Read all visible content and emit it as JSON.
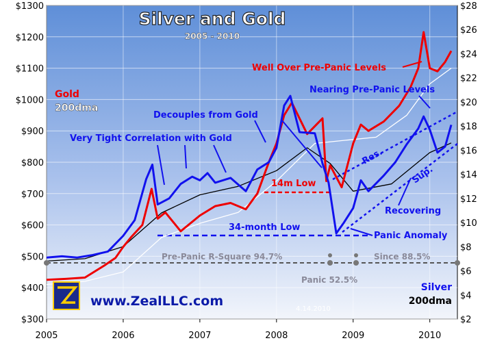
{
  "chart_data": {
    "type": "line",
    "title": "Silver and Gold",
    "subtitle": "2005 - 2010",
    "date_stamp": "4.14.2010",
    "branding": {
      "url": "www.ZealLLC.com"
    },
    "x_axis": {
      "ticks": [
        "2005",
        "2006",
        "2007",
        "2008",
        "2009",
        "2010"
      ],
      "range": [
        2005.0,
        2010.36
      ]
    },
    "y_left": {
      "range": [
        300,
        1300
      ],
      "ticks": [
        300,
        400,
        500,
        600,
        700,
        800,
        900,
        1000,
        1100,
        1200,
        1300
      ],
      "tick_labels": [
        "$300",
        "$400",
        "$500",
        "$600",
        "$700",
        "$800",
        "$900",
        "$1000",
        "$1100",
        "$1200",
        "$1300"
      ]
    },
    "y_right": {
      "range": [
        2,
        28
      ],
      "ticks": [
        2,
        4,
        6,
        8,
        10,
        12,
        14,
        16,
        18,
        20,
        22,
        24,
        26,
        28
      ],
      "tick_labels": [
        "$2",
        "$4",
        "$6",
        "$8",
        "$10",
        "$12",
        "$14",
        "$16",
        "$18",
        "$20",
        "$22",
        "$24",
        "$26",
        "$28"
      ]
    },
    "legend": {
      "gold": {
        "label": "Gold",
        "sublabel": "200dma"
      },
      "silver": {
        "label": "Silver",
        "sublabel": "200dma"
      }
    },
    "colors": {
      "gold": "#ee0000",
      "silver": "#1111ee",
      "gold_200dma": "#ffffff",
      "silver_200dma": "#000000",
      "plot_top": "#5f8fd8",
      "plot_bottom": "#f2f5fb"
    },
    "series": [
      {
        "name": "Gold",
        "axis": "left",
        "x": [
          2005.0,
          2005.25,
          2005.5,
          2005.75,
          2005.9,
          2006.0,
          2006.1,
          2006.25,
          2006.37,
          2006.45,
          2006.55,
          2006.75,
          2007.0,
          2007.2,
          2007.4,
          2007.6,
          2007.75,
          2007.9,
          2008.0,
          2008.1,
          2008.2,
          2008.4,
          2008.6,
          2008.65,
          2008.7,
          2008.85,
          2009.0,
          2009.1,
          2009.2,
          2009.4,
          2009.6,
          2009.75,
          2009.85,
          2009.92,
          2010.0,
          2010.1,
          2010.2,
          2010.28
        ],
        "y": [
          425,
          428,
          432,
          470,
          495,
          530,
          560,
          600,
          715,
          620,
          640,
          580,
          630,
          660,
          670,
          650,
          700,
          800,
          860,
          950,
          990,
          890,
          940,
          740,
          790,
          720,
          860,
          920,
          900,
          930,
          980,
          1040,
          1100,
          1215,
          1100,
          1090,
          1120,
          1155
        ]
      },
      {
        "name": "Silver",
        "axis": "right",
        "x": [
          2005.0,
          2005.2,
          2005.4,
          2005.6,
          2005.8,
          2006.0,
          2006.15,
          2006.3,
          2006.38,
          2006.45,
          2006.6,
          2006.75,
          2006.9,
          2007.0,
          2007.1,
          2007.2,
          2007.4,
          2007.6,
          2007.75,
          2007.9,
          2008.0,
          2008.1,
          2008.18,
          2008.3,
          2008.5,
          2008.6,
          2008.68,
          2008.78,
          2008.88,
          2009.0,
          2009.1,
          2009.2,
          2009.4,
          2009.55,
          2009.7,
          2009.85,
          2009.92,
          2010.0,
          2010.1,
          2010.2,
          2010.28
        ],
        "y": [
          7.1,
          7.2,
          7.1,
          7.3,
          7.6,
          8.9,
          10.2,
          13.6,
          14.8,
          11.5,
          12.0,
          13.2,
          13.8,
          13.5,
          14.1,
          13.3,
          13.7,
          12.6,
          14.4,
          15.0,
          16.2,
          19.7,
          20.5,
          17.5,
          17.4,
          14.9,
          13.3,
          9.1,
          10.0,
          11.2,
          13.5,
          12.6,
          13.9,
          15.0,
          16.5,
          17.8,
          18.8,
          17.7,
          15.8,
          16.3,
          18.1
        ]
      },
      {
        "name": "Gold 200dma",
        "axis": "left",
        "x": [
          2005.0,
          2005.5,
          2006.0,
          2006.5,
          2007.0,
          2007.5,
          2008.0,
          2008.5,
          2008.9,
          2009.3,
          2009.7,
          2010.0,
          2010.28
        ],
        "y": [
          410,
          420,
          450,
          560,
          605,
          640,
          740,
          860,
          870,
          880,
          950,
          1050,
          1100
        ]
      },
      {
        "name": "Silver 200dma",
        "axis": "right",
        "x": [
          2005.0,
          2005.5,
          2006.0,
          2006.5,
          2007.0,
          2007.5,
          2008.0,
          2008.4,
          2008.7,
          2009.0,
          2009.5,
          2010.0,
          2010.28
        ],
        "y": [
          6.8,
          7.0,
          8.0,
          10.8,
          12.3,
          13.0,
          14.3,
          16.2,
          14.9,
          12.6,
          13.2,
          15.8,
          16.6
        ]
      }
    ],
    "annotations": {
      "well_over": "Well Over Pre-Panic Levels",
      "nearing": "Nearing Pre-Panic Levels",
      "decouples": "Decouples from Gold",
      "tight": "Very Tight Correlation with Gold",
      "low14m": "14m Low",
      "low34m": "34-month Low",
      "panic_anomaly": "Panic Anomaly",
      "recovering": "Recovering",
      "res": "Res.",
      "sup": "Sup.",
      "rsq_pre": "Pre-Panic R-Square 94.7%",
      "rsq_since": "Since 88.5%",
      "rsq_panic": "Panic 52.5%"
    }
  }
}
